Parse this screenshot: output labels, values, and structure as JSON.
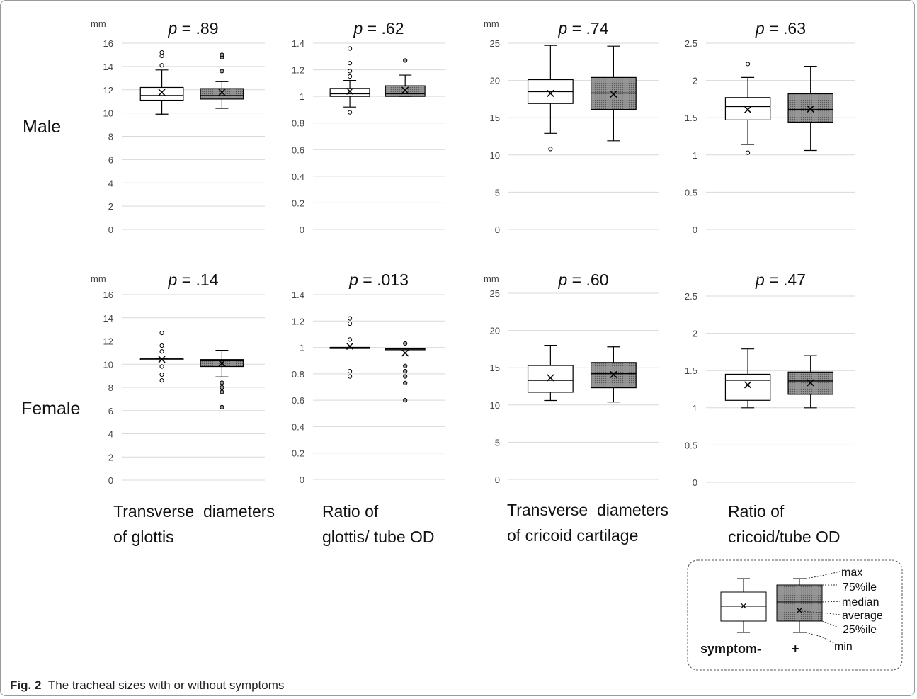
{
  "figure": {
    "caption_label": "Fig. 2",
    "caption_text": "The tracheal sizes with or without symptoms",
    "row_labels": [
      "Male",
      "Female"
    ],
    "column_titles": [
      [
        "Transverse  diameters",
        "of glottis"
      ],
      [
        "Ratio of",
        "glottis/ tube OD"
      ],
      [
        "Transverse  diameters",
        "of cricoid cartilage"
      ],
      [
        "Ratio of",
        "cricoid/tube OD"
      ]
    ],
    "unit_label": "mm",
    "group_labels": [
      "symptom-",
      "+"
    ],
    "legend_labels": [
      "max",
      "75%ile",
      "median",
      "average",
      "25%ile",
      "min"
    ],
    "colors": {
      "symptom_negative_fill": "#ffffff",
      "symptom_positive_fill": "#8c8c8c",
      "gridline": "#d9d9d9",
      "stroke": "#000000"
    }
  },
  "chart_data": [
    {
      "type": "box",
      "row": "Male",
      "p_label": "p",
      "p_value": " = .89",
      "ylabel": "mm",
      "ylim": [
        0,
        16
      ],
      "yticks": [
        "0",
        "2",
        "4",
        "6",
        "8",
        "10",
        "12",
        "14",
        "16"
      ],
      "series": [
        {
          "name": "symptom-",
          "min": 9.9,
          "q1": 11.1,
          "median": 11.5,
          "q3": 12.2,
          "max": 13.7,
          "mean": 11.8,
          "outliers": [
            14.1,
            14.9,
            15.2
          ]
        },
        {
          "name": "+",
          "min": 10.4,
          "q1": 11.2,
          "median": 11.5,
          "q3": 12.1,
          "max": 12.7,
          "mean": 11.8,
          "outliers": [
            13.6,
            14.8,
            15.0
          ]
        }
      ]
    },
    {
      "type": "box",
      "row": "Male",
      "p_label": "p",
      "p_value": " = .62",
      "ylabel": "",
      "ylim": [
        0,
        1.4
      ],
      "yticks": [
        "0",
        "0.2",
        "0.4",
        "0.6",
        "0.8",
        "1",
        "1.2",
        "1.4"
      ],
      "series": [
        {
          "name": "symptom-",
          "min": 0.92,
          "q1": 1.0,
          "median": 1.02,
          "q3": 1.06,
          "max": 1.12,
          "mean": 1.04,
          "outliers": [
            0.88,
            1.15,
            1.19,
            1.25,
            1.36
          ]
        },
        {
          "name": "+",
          "min": 1.0,
          "q1": 1.0,
          "median": 1.02,
          "q3": 1.08,
          "max": 1.16,
          "mean": 1.05,
          "outliers": [
            1.27
          ]
        }
      ]
    },
    {
      "type": "box",
      "row": "Male",
      "p_label": "p",
      "p_value": " = .74",
      "ylabel": "mm",
      "ylim": [
        0,
        25
      ],
      "yticks": [
        "0",
        "5",
        "10",
        "15",
        "20",
        "25"
      ],
      "series": [
        {
          "name": "symptom-",
          "min": 12.9,
          "q1": 16.9,
          "median": 18.5,
          "q3": 20.1,
          "max": 24.7,
          "mean": 18.3,
          "outliers": [
            10.8
          ]
        },
        {
          "name": "+",
          "min": 11.9,
          "q1": 16.1,
          "median": 18.3,
          "q3": 20.4,
          "max": 24.6,
          "mean": 18.2,
          "outliers": []
        }
      ]
    },
    {
      "type": "box",
      "row": "Male",
      "p_label": "p",
      "p_value": " = .63",
      "ylabel": "",
      "ylim": [
        0,
        2.5
      ],
      "yticks": [
        "0",
        "0.5",
        "1",
        "1.5",
        "2",
        "2.5"
      ],
      "series": [
        {
          "name": "symptom-",
          "min": 1.14,
          "q1": 1.47,
          "median": 1.65,
          "q3": 1.77,
          "max": 2.04,
          "mean": 1.61,
          "outliers": [
            1.03,
            2.22
          ]
        },
        {
          "name": "+",
          "min": 1.06,
          "q1": 1.44,
          "median": 1.61,
          "q3": 1.82,
          "max": 2.19,
          "mean": 1.62,
          "outliers": []
        }
      ]
    },
    {
      "type": "box",
      "row": "Female",
      "p_label": "p",
      "p_value": " = .14",
      "ylabel": "mm",
      "ylim": [
        0,
        16
      ],
      "yticks": [
        "0",
        "2",
        "4",
        "6",
        "8",
        "10",
        "12",
        "14",
        "16"
      ],
      "series": [
        {
          "name": "symptom-",
          "min": 10.45,
          "q1": 10.45,
          "median": 10.45,
          "q3": 10.45,
          "max": 10.45,
          "mean": 10.45,
          "outliers": [
            8.6,
            9.1,
            9.8,
            11.1,
            11.6,
            12.7
          ]
        },
        {
          "name": "+",
          "min": 8.9,
          "q1": 9.8,
          "median": 10.3,
          "q3": 10.4,
          "max": 11.2,
          "mean": 10.1,
          "outliers": [
            6.3,
            7.6,
            8.0,
            8.4
          ]
        }
      ]
    },
    {
      "type": "box",
      "row": "Female",
      "p_label": "p",
      "p_value": " = .013",
      "ylabel": "",
      "ylim": [
        0,
        1.4
      ],
      "yticks": [
        "0",
        "0.2",
        "0.4",
        "0.6",
        "0.8",
        "1",
        "1.2",
        "1.4"
      ],
      "series": [
        {
          "name": "symptom-",
          "min": 1.0,
          "q1": 1.0,
          "median": 1.0,
          "q3": 1.0,
          "max": 1.0,
          "mean": 1.01,
          "outliers": [
            0.78,
            0.82,
            1.06,
            1.18,
            1.22
          ]
        },
        {
          "name": "+",
          "min": 0.99,
          "q1": 0.99,
          "median": 0.99,
          "q3": 0.99,
          "max": 0.99,
          "mean": 0.96,
          "outliers": [
            0.6,
            0.73,
            0.78,
            0.82,
            0.86,
            1.03
          ]
        }
      ]
    },
    {
      "type": "box",
      "row": "Female",
      "p_label": "p",
      "p_value": " = .60",
      "ylabel": "mm",
      "ylim": [
        0,
        25
      ],
      "yticks": [
        "0",
        "5",
        "10",
        "15",
        "20",
        "25"
      ],
      "series": [
        {
          "name": "symptom-",
          "min": 10.6,
          "q1": 11.7,
          "median": 13.3,
          "q3": 15.3,
          "max": 18.0,
          "mean": 13.7,
          "outliers": []
        },
        {
          "name": "+",
          "min": 10.4,
          "q1": 12.3,
          "median": 14.2,
          "q3": 15.7,
          "max": 17.8,
          "mean": 14.1,
          "outliers": []
        }
      ]
    },
    {
      "type": "box",
      "row": "Female",
      "p_label": "p",
      "p_value": " = .47",
      "ylabel": "",
      "ylim": [
        0,
        2.5
      ],
      "yticks": [
        "0",
        "0.5",
        "1",
        "1.5",
        "2",
        "2.5"
      ],
      "series": [
        {
          "name": "symptom-",
          "min": 1.0,
          "q1": 1.1,
          "median": 1.37,
          "q3": 1.45,
          "max": 1.79,
          "mean": 1.31,
          "outliers": []
        },
        {
          "name": "+",
          "min": 1.0,
          "q1": 1.18,
          "median": 1.36,
          "q3": 1.48,
          "max": 1.7,
          "mean": 1.34,
          "outliers": []
        }
      ]
    }
  ]
}
